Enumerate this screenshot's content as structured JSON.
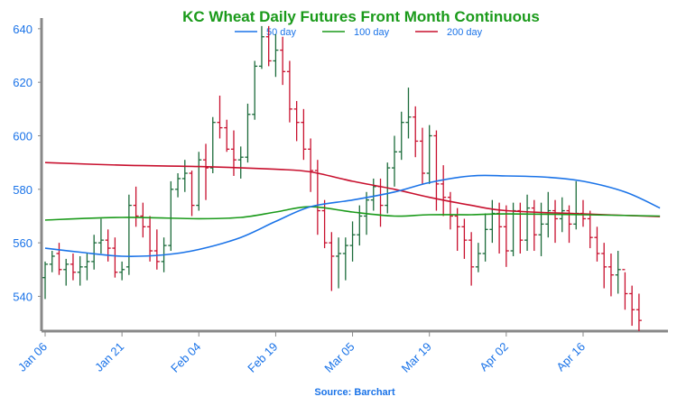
{
  "chart_data": {
    "type": "ohlc",
    "title": "KC Wheat Daily Futures Front Month Continuous",
    "source": "Source: Barchart",
    "ylim": [
      527,
      644
    ],
    "yticks": [
      540,
      560,
      580,
      600,
      620,
      640
    ],
    "xlim": [
      0,
      90
    ],
    "xticks": [
      {
        "index": 0,
        "label": "Jan 06"
      },
      {
        "index": 11,
        "label": "Jan 21"
      },
      {
        "index": 22,
        "label": "Feb 04"
      },
      {
        "index": 33,
        "label": "Feb 19"
      },
      {
        "index": 44,
        "label": "Mar 05"
      },
      {
        "index": 55,
        "label": "Mar 19"
      },
      {
        "index": 66,
        "label": "Apr 02"
      },
      {
        "index": 77,
        "label": "Apr 16"
      }
    ],
    "colors": {
      "up": "#1b6b3a",
      "down": "#c8102e",
      "sma50": "#1a73e8",
      "sma100": "#1a9a1a",
      "sma200": "#c8102e",
      "title": "#1a9a1a",
      "axis_text": "#1a73e8",
      "axis": "#888888"
    },
    "legend": [
      {
        "name": "50 day",
        "color": "#1a73e8"
      },
      {
        "name": "100 day",
        "color": "#1a9a1a"
      },
      {
        "name": "200 day",
        "color": "#c8102e"
      }
    ],
    "sma50": [
      [
        0,
        558
      ],
      [
        5,
        556.5
      ],
      [
        11,
        555
      ],
      [
        17,
        555.5
      ],
      [
        22,
        557.5
      ],
      [
        28,
        562
      ],
      [
        33,
        568
      ],
      [
        38,
        573.5
      ],
      [
        44,
        576
      ],
      [
        50,
        579
      ],
      [
        55,
        582.5
      ],
      [
        61,
        585
      ],
      [
        66,
        585
      ],
      [
        72,
        584.5
      ],
      [
        77,
        583
      ],
      [
        83,
        579
      ],
      [
        88,
        573
      ]
    ],
    "sma100": [
      [
        0,
        568.5
      ],
      [
        11,
        569.5
      ],
      [
        22,
        569
      ],
      [
        28,
        569.5
      ],
      [
        33,
        571.5
      ],
      [
        38,
        573.5
      ],
      [
        44,
        571.5
      ],
      [
        50,
        570
      ],
      [
        55,
        570.5
      ],
      [
        61,
        570.5
      ],
      [
        66,
        570.8
      ],
      [
        77,
        570.5
      ],
      [
        88,
        570
      ]
    ],
    "sma200": [
      [
        0,
        590
      ],
      [
        11,
        589
      ],
      [
        22,
        588.5
      ],
      [
        33,
        587.5
      ],
      [
        38,
        586.5
      ],
      [
        44,
        583
      ],
      [
        50,
        580
      ],
      [
        55,
        577
      ],
      [
        61,
        574
      ],
      [
        66,
        572
      ],
      [
        77,
        570.8
      ],
      [
        88,
        569.8
      ]
    ],
    "ohlc": [
      [
        547,
        553,
        539,
        552
      ],
      [
        552,
        557,
        549,
        555
      ],
      [
        556,
        560,
        548,
        550
      ],
      [
        550,
        554,
        544,
        552
      ],
      [
        552,
        556,
        546,
        549
      ],
      [
        549,
        555,
        544,
        551
      ],
      [
        551,
        556,
        546,
        553
      ],
      [
        553,
        563,
        550,
        560
      ],
      [
        560,
        569,
        556,
        561
      ],
      [
        561,
        565,
        553,
        558
      ],
      [
        558,
        562,
        547,
        549
      ],
      [
        549,
        553,
        546,
        550
      ],
      [
        551,
        578,
        548,
        574
      ],
      [
        574,
        581,
        566,
        570
      ],
      [
        570,
        575,
        562,
        566
      ],
      [
        566,
        570,
        553,
        557
      ],
      [
        557,
        565,
        550,
        553
      ],
      [
        553,
        562,
        549,
        559
      ],
      [
        559,
        583,
        557,
        580
      ],
      [
        580,
        586,
        577,
        584
      ],
      [
        584,
        591,
        579,
        586
      ],
      [
        586,
        587,
        570,
        574
      ],
      [
        574,
        594,
        572,
        591
      ],
      [
        591,
        597,
        576,
        588
      ],
      [
        588,
        607,
        586,
        605
      ],
      [
        605,
        615,
        599,
        603
      ],
      [
        603,
        606,
        594,
        595
      ],
      [
        595,
        602,
        585,
        591
      ],
      [
        591,
        596,
        584,
        592
      ],
      [
        592,
        612,
        590,
        608
      ],
      [
        608,
        628,
        606,
        626
      ],
      [
        626,
        641,
        625,
        637
      ],
      [
        637,
        641,
        626,
        628
      ],
      [
        628,
        638,
        622,
        632
      ],
      [
        632,
        637,
        619,
        624
      ],
      [
        624,
        628,
        605,
        610
      ],
      [
        610,
        613,
        598,
        605
      ],
      [
        605,
        610,
        591,
        595
      ],
      [
        595,
        599,
        579,
        587
      ],
      [
        587,
        591,
        563,
        572
      ],
      [
        572,
        576,
        558,
        560
      ],
      [
        560,
        564,
        542,
        555
      ],
      [
        555,
        562,
        543,
        556
      ],
      [
        556,
        562,
        546,
        559
      ],
      [
        559,
        568,
        553,
        563
      ],
      [
        563,
        574,
        559,
        570
      ],
      [
        570,
        579,
        563,
        576
      ],
      [
        576,
        584,
        572,
        581
      ],
      [
        581,
        584,
        566,
        574
      ],
      [
        574,
        590,
        571,
        588
      ],
      [
        588,
        600,
        581,
        594
      ],
      [
        594,
        609,
        591,
        605
      ],
      [
        605,
        618,
        599,
        607
      ],
      [
        607,
        611,
        592,
        598
      ],
      [
        598,
        603,
        582,
        586
      ],
      [
        586,
        604,
        582,
        600
      ],
      [
        600,
        602,
        572,
        582
      ],
      [
        582,
        589,
        570,
        577
      ],
      [
        577,
        579,
        565,
        570
      ],
      [
        570,
        573,
        557,
        566
      ],
      [
        566,
        569,
        554,
        561
      ],
      [
        561,
        564,
        544,
        551
      ],
      [
        551,
        560,
        549,
        556
      ],
      [
        556,
        571,
        553,
        565
      ],
      [
        565,
        576,
        560,
        571
      ],
      [
        571,
        575,
        556,
        566
      ],
      [
        566,
        574,
        551,
        557
      ],
      [
        557,
        575,
        555,
        572
      ],
      [
        572,
        575,
        556,
        561
      ],
      [
        561,
        578,
        557,
        573
      ],
      [
        573,
        576,
        557,
        563
      ],
      [
        563,
        575,
        555,
        567
      ],
      [
        567,
        579,
        562,
        572
      ],
      [
        572,
        576,
        560,
        569
      ],
      [
        569,
        577,
        564,
        572
      ],
      [
        572,
        574,
        560,
        567
      ],
      [
        567,
        583,
        565,
        571
      ],
      [
        571,
        576,
        566,
        569
      ],
      [
        569,
        572,
        558,
        562
      ],
      [
        562,
        566,
        553,
        556
      ],
      [
        556,
        560,
        543,
        551
      ],
      [
        551,
        556,
        540,
        548
      ],
      [
        548,
        557,
        541,
        550
      ],
      [
        550,
        549,
        535,
        541
      ],
      [
        541,
        544,
        529,
        535
      ],
      [
        535,
        541,
        527,
        531
      ]
    ]
  }
}
